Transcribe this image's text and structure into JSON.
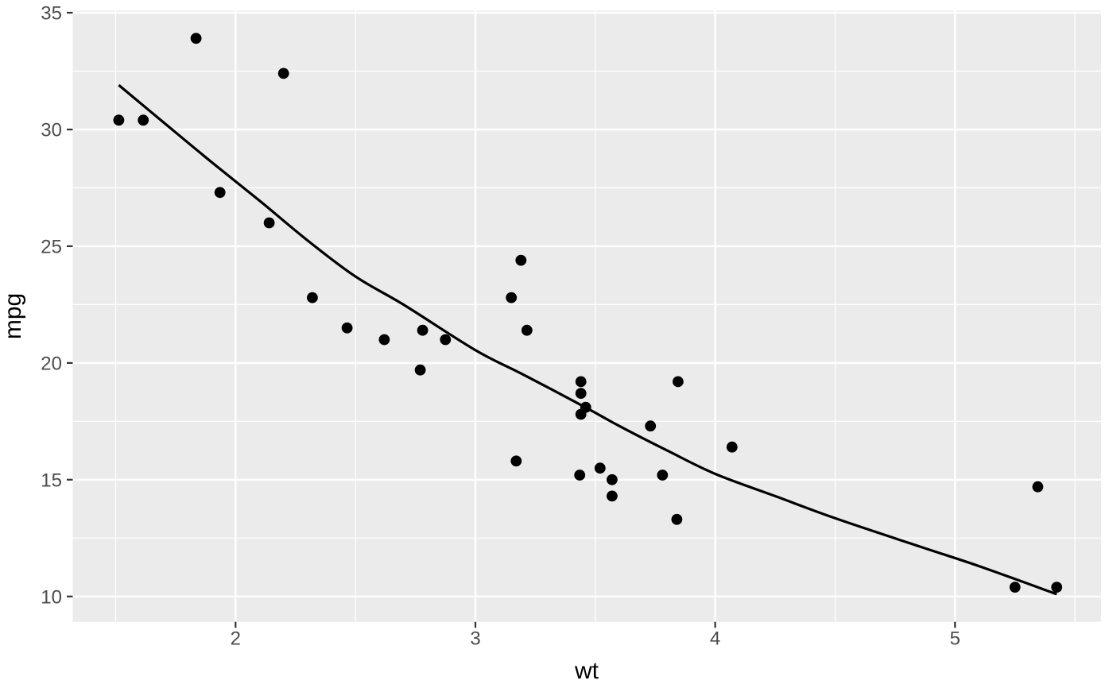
{
  "chart_data": {
    "type": "scatter",
    "title": "",
    "xlabel": "wt",
    "ylabel": "mpg",
    "xlim": [
      1.321,
      5.609
    ],
    "ylim": [
      8.915,
      35.085
    ],
    "x_major_ticks": [
      2,
      3,
      4,
      5
    ],
    "y_major_ticks": [
      10,
      15,
      20,
      25,
      30,
      35
    ],
    "x_minor_gridlines": [
      1.5,
      2.5,
      3.5,
      4.5,
      5.5
    ],
    "y_minor_gridlines": [
      12.5,
      17.5,
      22.5,
      27.5,
      32.5
    ],
    "grid": true,
    "legend": "none",
    "points": [
      [
        2.62,
        21.0
      ],
      [
        2.875,
        21.0
      ],
      [
        2.32,
        22.8
      ],
      [
        3.215,
        21.4
      ],
      [
        3.44,
        18.7
      ],
      [
        3.46,
        18.1
      ],
      [
        3.57,
        14.3
      ],
      [
        3.19,
        24.4
      ],
      [
        3.15,
        22.8
      ],
      [
        3.44,
        19.2
      ],
      [
        3.44,
        17.8
      ],
      [
        4.07,
        16.4
      ],
      [
        3.73,
        17.3
      ],
      [
        3.78,
        15.2
      ],
      [
        5.25,
        10.4
      ],
      [
        5.424,
        10.4
      ],
      [
        5.345,
        14.7
      ],
      [
        2.2,
        32.4
      ],
      [
        1.615,
        30.4
      ],
      [
        1.835,
        33.9
      ],
      [
        2.465,
        21.5
      ],
      [
        3.52,
        15.5
      ],
      [
        3.435,
        15.2
      ],
      [
        3.84,
        13.3
      ],
      [
        3.845,
        19.2
      ],
      [
        1.935,
        27.3
      ],
      [
        2.14,
        26.0
      ],
      [
        1.513,
        30.4
      ],
      [
        3.17,
        15.8
      ],
      [
        2.77,
        19.7
      ],
      [
        3.57,
        15.0
      ],
      [
        2.78,
        21.4
      ]
    ],
    "smooth_line": {
      "kind": "loess",
      "se": false,
      "samples": [
        [
          1.513,
          31.9
        ],
        [
          1.7,
          30.3
        ],
        [
          1.9,
          28.6
        ],
        [
          2.1,
          26.95
        ],
        [
          2.3,
          25.25
        ],
        [
          2.5,
          23.7
        ],
        [
          2.7,
          22.5
        ],
        [
          3.0,
          20.55
        ],
        [
          3.2,
          19.5
        ],
        [
          3.45,
          18.15
        ],
        [
          3.6,
          17.3
        ],
        [
          3.8,
          16.25
        ],
        [
          4.0,
          15.25
        ],
        [
          4.25,
          14.3
        ],
        [
          4.5,
          13.35
        ],
        [
          4.85,
          12.15
        ],
        [
          5.1,
          11.3
        ],
        [
          5.424,
          10.1
        ]
      ]
    },
    "colors": {
      "background": "#FFFFFF",
      "panel_background": "#EBEBEB",
      "gridline": "#FFFFFF",
      "point": "#000000",
      "smooth_line": "#000000",
      "tick_mark": "#333333",
      "tick_label": "#4D4D4D",
      "axis_title": "#000000"
    }
  }
}
